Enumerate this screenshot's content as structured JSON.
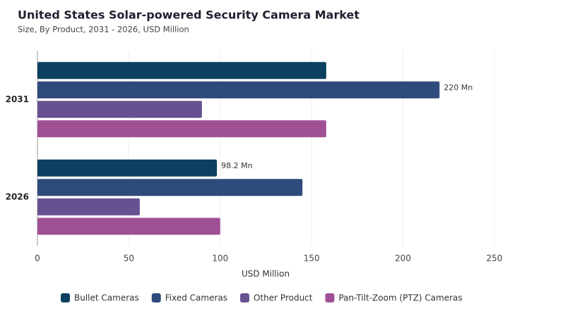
{
  "chart_data": {
    "type": "hbar",
    "title": "United States Solar-powered Security Camera Market",
    "subtitle": "Size, By Product, 2031 - 2026, USD Million",
    "xlabel": "USD Million",
    "categories": [
      "2031",
      "2026"
    ],
    "series": [
      {
        "name": "Bullet Cameras",
        "color": "#0b4060",
        "values": [
          158,
          98.2
        ],
        "value_labels": [
          null,
          "98.2 Mn"
        ]
      },
      {
        "name": "Fixed Cameras",
        "color": "#2f4b7c",
        "values": [
          220,
          145
        ],
        "value_labels": [
          "220 Mn",
          null
        ]
      },
      {
        "name": "Other Product",
        "color": "#665191",
        "values": [
          90,
          56
        ]
      },
      {
        "name": "Pan-Tilt-Zoom (PTZ) Cameras",
        "color": "#a05195",
        "values": [
          158,
          100
        ]
      }
    ],
    "xlim": [
      0,
      250
    ],
    "xticks": [
      0,
      50,
      100,
      150,
      200,
      250
    ],
    "grid": true,
    "legend": "bottom"
  }
}
